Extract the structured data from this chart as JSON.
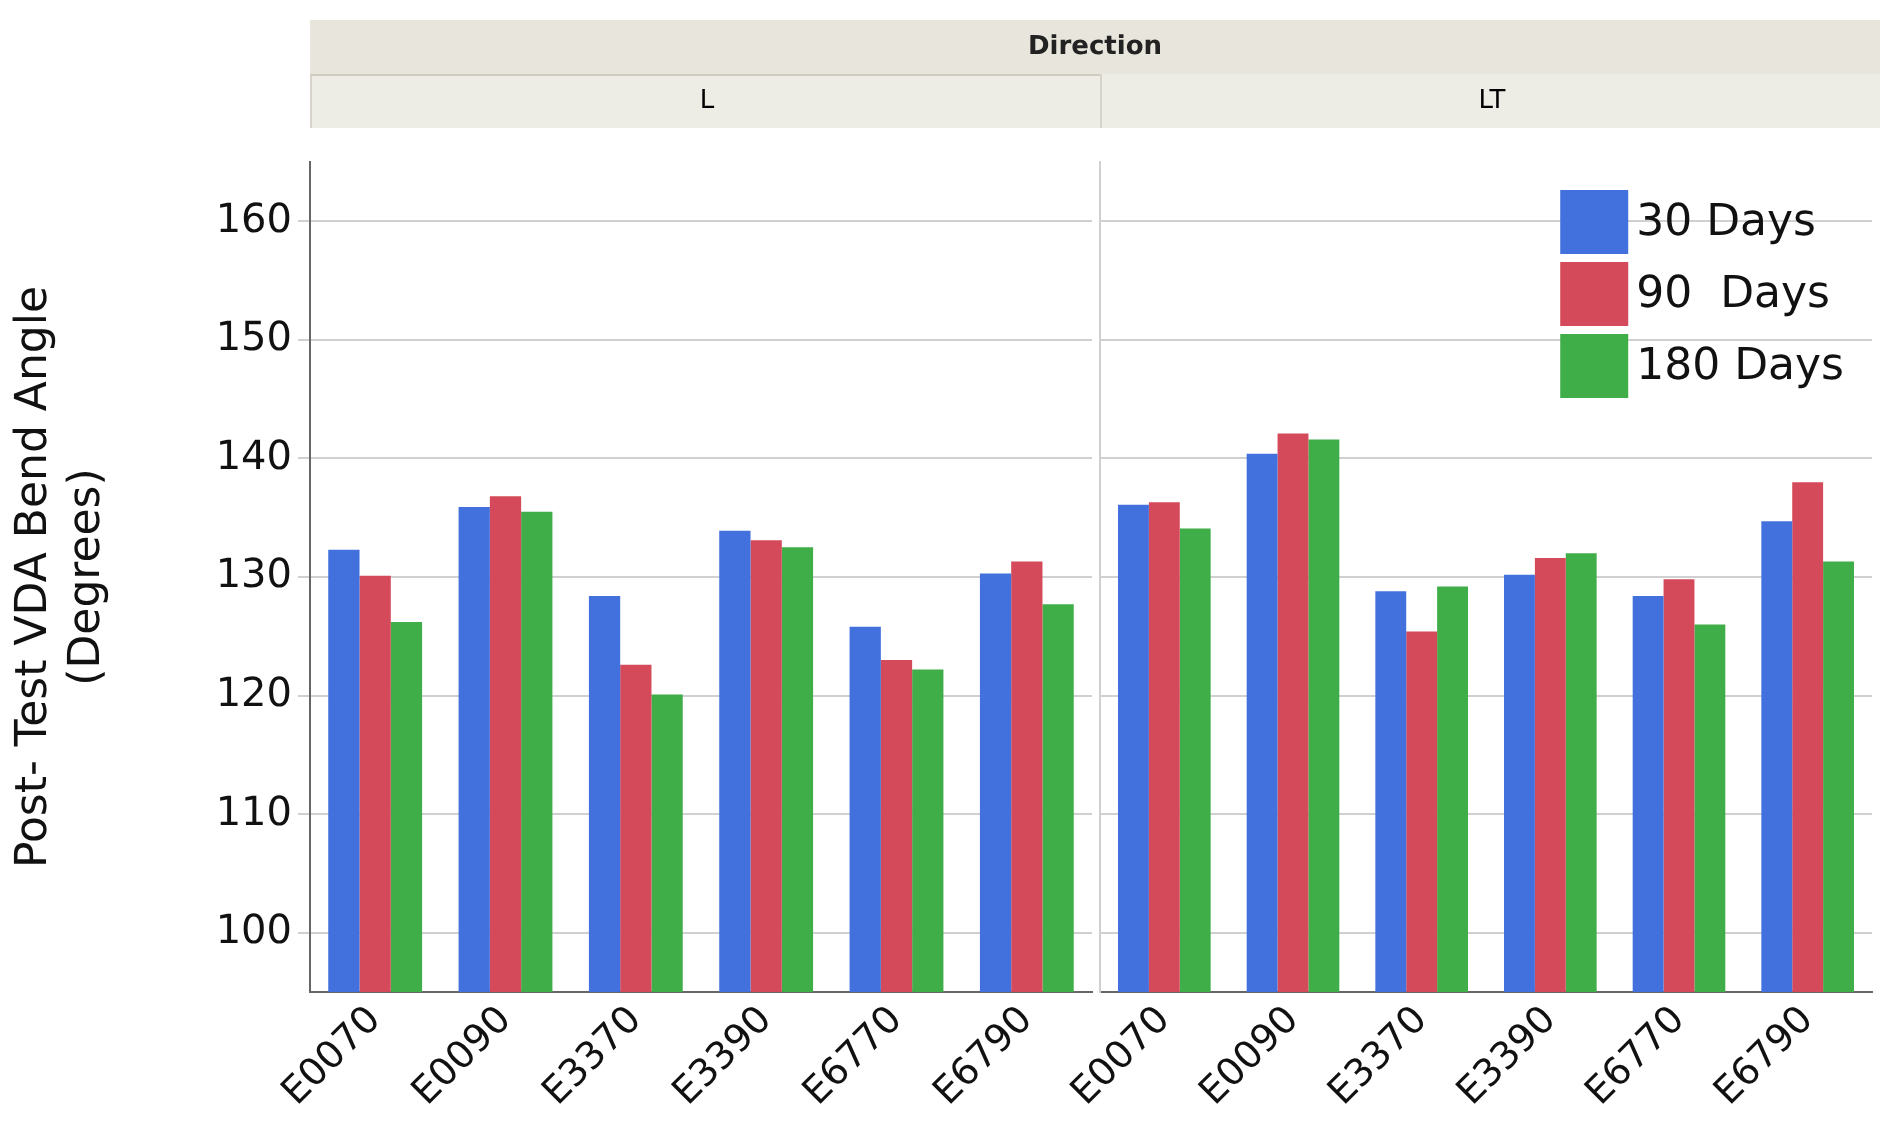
{
  "chart_data": [
    {
      "type": "bar",
      "title": "L",
      "annotations": [
        "Direction"
      ],
      "ylabel": "Post- Test VDA Bend Angle\n(Degrees)",
      "categories": [
        "E0070",
        "E0090",
        "E3370",
        "E3390",
        "E6770",
        "E6790"
      ],
      "series": [
        {
          "color": "#4270dd",
          "values": [
            132.3,
            135.9,
            128.4,
            133.9,
            125.8,
            130.3
          ]
        },
        {
          "color": "#d44a5a",
          "values": [
            130.1,
            136.8,
            122.6,
            133.1,
            123.0,
            131.3
          ]
        },
        {
          "color": "#3fae49",
          "values": [
            126.2,
            135.5,
            120.1,
            132.5,
            122.2,
            127.7
          ]
        }
      ],
      "ylim": [
        95,
        165
      ],
      "yticks": [
        100,
        110,
        120,
        130,
        140,
        150,
        160
      ],
      "grid": "y",
      "legend": false
    },
    {
      "type": "bar",
      "title": "LT",
      "categories": [
        "E0070",
        "E0090",
        "E3370",
        "E3390",
        "E6770",
        "E6790"
      ],
      "series": [
        {
          "name": "30 Days",
          "color": "#4270dd",
          "values": [
            136.1,
            140.4,
            128.8,
            130.2,
            128.4,
            134.7
          ]
        },
        {
          "name": "90  Days",
          "color": "#d44a5a",
          "values": [
            136.3,
            142.1,
            125.4,
            131.6,
            129.8,
            138.0
          ]
        },
        {
          "name": "180 Days",
          "color": "#3fae49",
          "values": [
            134.1,
            141.6,
            129.2,
            132.0,
            126.0,
            131.3
          ]
        }
      ],
      "ylim": [
        95,
        165
      ],
      "yticks": [
        100,
        110,
        120,
        130,
        140,
        150,
        160
      ],
      "grid": "y",
      "legend": "top right",
      "tick_labels": "x"
    }
  ]
}
